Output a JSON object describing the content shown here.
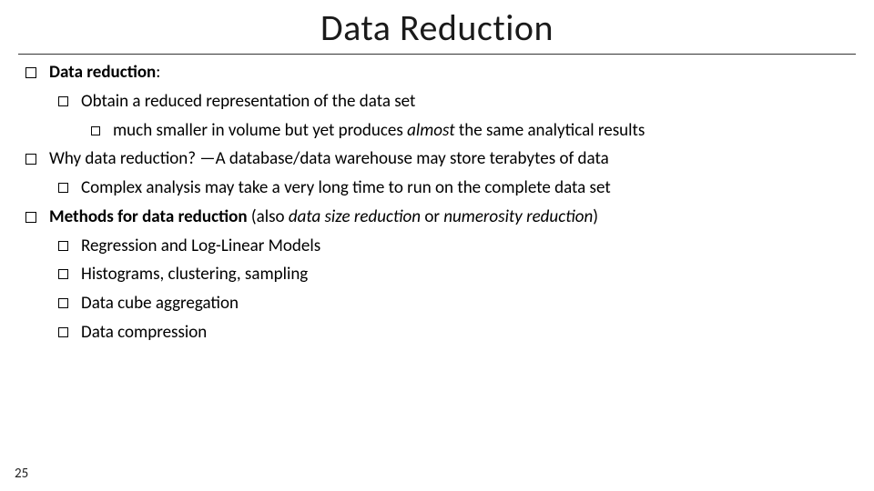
{
  "title": "Data Reduction",
  "page_number": "25",
  "colors": {
    "background": "#ffffff",
    "text": "#000000",
    "rule": "#333333",
    "bullet_border": "#000000"
  },
  "typography": {
    "title_font": "Gill Sans MT",
    "title_size_pt": 40,
    "body_font": "Calibri",
    "body_size_pt": 19
  },
  "bullets": [
    {
      "level": 0,
      "segments": [
        {
          "text": "Data reduction",
          "bold": true
        },
        {
          "text": ":"
        }
      ]
    },
    {
      "level": 1,
      "segments": [
        {
          "text": "Obtain a reduced representation of the data set"
        }
      ]
    },
    {
      "level": 2,
      "segments": [
        {
          "text": "much smaller in volume but yet produces "
        },
        {
          "text": "almost",
          "italic": true
        },
        {
          "text": " the same analytical results"
        }
      ]
    },
    {
      "level": 0,
      "segments": [
        {
          "text": "Why data reduction? —A database/data warehouse may store terabytes of data"
        }
      ]
    },
    {
      "level": 1,
      "segments": [
        {
          "text": "Complex analysis may take a very long time to run on the complete data set"
        }
      ]
    },
    {
      "level": 0,
      "segments": [
        {
          "text": "Methods for data reduction",
          "bold": true
        },
        {
          "text": " (also "
        },
        {
          "text": "data size reduction",
          "italic": true
        },
        {
          "text": " or "
        },
        {
          "text": "numerosity reduction",
          "italic": true
        },
        {
          "text": ")"
        }
      ]
    },
    {
      "level": 1,
      "segments": [
        {
          "text": "Regression and Log-Linear Models"
        }
      ]
    },
    {
      "level": 1,
      "segments": [
        {
          "text": "Histograms, clustering, sampling"
        }
      ]
    },
    {
      "level": 1,
      "segments": [
        {
          "text": "Data cube aggregation"
        }
      ]
    },
    {
      "level": 1,
      "segments": [
        {
          "text": "Data compression"
        }
      ]
    }
  ]
}
